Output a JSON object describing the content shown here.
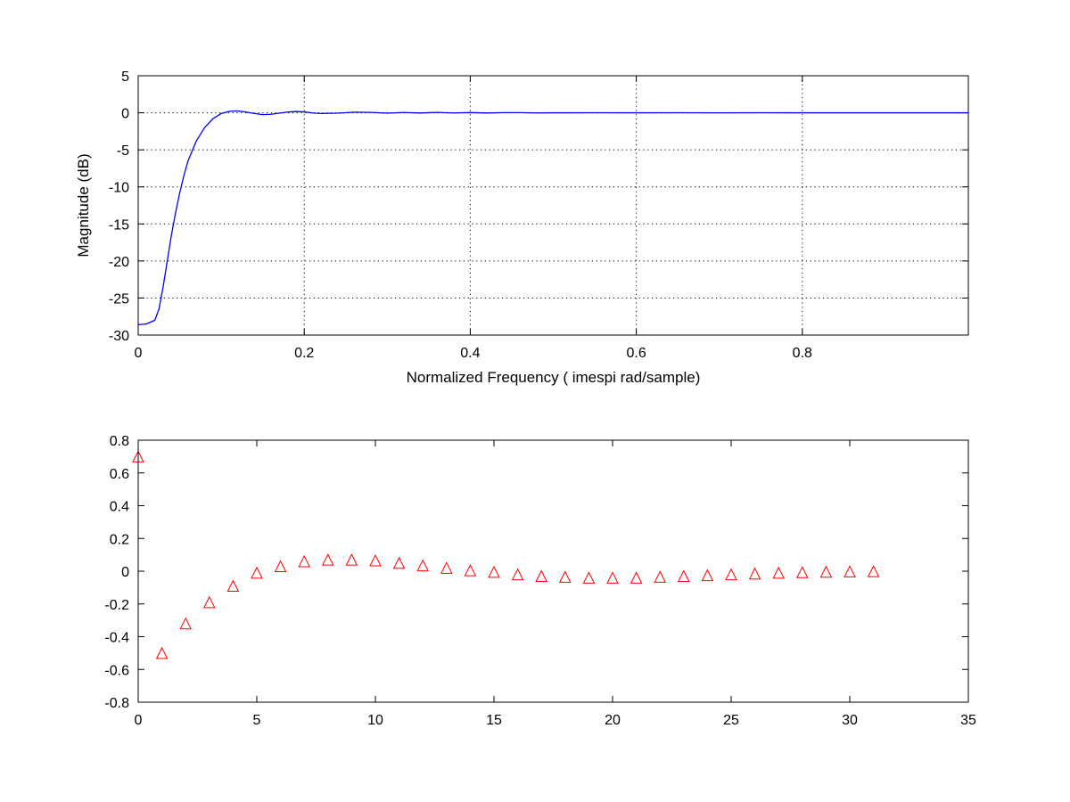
{
  "colors": {
    "line": "#0000ff",
    "marker": "#ff0000",
    "axes": "#000000",
    "background": "#ffffff"
  },
  "chart_data": [
    {
      "type": "line",
      "title": "",
      "xlabel": "Normalized Frequency ( imespi rad/sample)",
      "ylabel": "Magnitude (dB)",
      "xlim": [
        0,
        1
      ],
      "ylim": [
        -30,
        5
      ],
      "grid": true,
      "xticks": [
        0,
        0.2,
        0.4,
        0.6,
        0.8
      ],
      "xtick_labels": [
        "0",
        "0.2",
        "0.4",
        "0.6",
        "0.8"
      ],
      "yticks": [
        5,
        0,
        -5,
        -10,
        -15,
        -20,
        -25,
        -30
      ],
      "ytick_labels": [
        "5",
        "0",
        "-5",
        "-10",
        "-15",
        "-20",
        "-25",
        "-30"
      ],
      "series": [
        {
          "color": "#0000ff",
          "x": [
            0,
            0.01,
            0.02,
            0.025,
            0.03,
            0.035,
            0.04,
            0.045,
            0.05,
            0.055,
            0.06,
            0.07,
            0.08,
            0.09,
            0.1,
            0.11,
            0.12,
            0.13,
            0.14,
            0.15,
            0.16,
            0.17,
            0.18,
            0.19,
            0.2,
            0.21,
            0.22,
            0.24,
            0.26,
            0.28,
            0.3,
            0.32,
            0.34,
            0.36,
            0.38,
            0.4,
            0.42,
            0.44,
            0.46,
            0.48,
            0.5,
            0.55,
            0.6,
            0.65,
            0.7,
            0.75,
            0.8,
            0.85,
            0.9,
            0.95,
            1.0
          ],
          "y": [
            -28.6,
            -28.5,
            -28.0,
            -26.5,
            -23.5,
            -20.0,
            -16.5,
            -13.5,
            -10.8,
            -8.5,
            -6.5,
            -3.8,
            -2.0,
            -0.8,
            -0.1,
            0.2,
            0.25,
            0.1,
            -0.1,
            -0.25,
            -0.2,
            -0.05,
            0.1,
            0.18,
            0.12,
            -0.02,
            -0.1,
            -0.05,
            0.08,
            0.05,
            -0.05,
            0.04,
            -0.03,
            0.05,
            -0.02,
            0.03,
            -0.03,
            0.02,
            0.02,
            -0.02,
            0.0,
            0.01,
            0.0,
            0.01,
            -0.01,
            0.01,
            0.0,
            0.0,
            0.0,
            0.0,
            0.0
          ]
        }
      ]
    },
    {
      "type": "scatter",
      "title": "",
      "xlabel": "",
      "ylabel": "",
      "xlim": [
        0,
        35
      ],
      "ylim": [
        -0.8,
        0.8
      ],
      "grid": false,
      "marker": "triangle-up",
      "xticks": [
        0,
        5,
        10,
        15,
        20,
        25,
        30,
        35
      ],
      "xtick_labels": [
        "0",
        "5",
        "10",
        "15",
        "20",
        "25",
        "30",
        "35"
      ],
      "yticks": [
        0.8,
        0.6,
        0.4,
        0.2,
        0,
        -0.2,
        -0.4,
        -0.6,
        -0.8
      ],
      "ytick_labels": [
        "0.8",
        "0.6",
        "0.4",
        "0.2",
        "0",
        "-0.2",
        "-0.4",
        "-0.6",
        "-0.8"
      ],
      "series": [
        {
          "color": "#ff0000",
          "x": [
            0,
            1,
            2,
            3,
            4,
            5,
            6,
            7,
            8,
            9,
            10,
            11,
            12,
            13,
            14,
            15,
            16,
            17,
            18,
            19,
            20,
            21,
            22,
            23,
            24,
            25,
            26,
            27,
            28,
            29,
            30,
            31
          ],
          "y": [
            0.7,
            -0.5,
            -0.32,
            -0.19,
            -0.09,
            -0.01,
            0.03,
            0.06,
            0.07,
            0.07,
            0.065,
            0.05,
            0.035,
            0.02,
            0.005,
            -0.005,
            -0.02,
            -0.03,
            -0.035,
            -0.04,
            -0.04,
            -0.04,
            -0.035,
            -0.03,
            -0.025,
            -0.02,
            -0.015,
            -0.01,
            -0.007,
            -0.004,
            -0.002,
            -0.001
          ]
        }
      ]
    }
  ]
}
